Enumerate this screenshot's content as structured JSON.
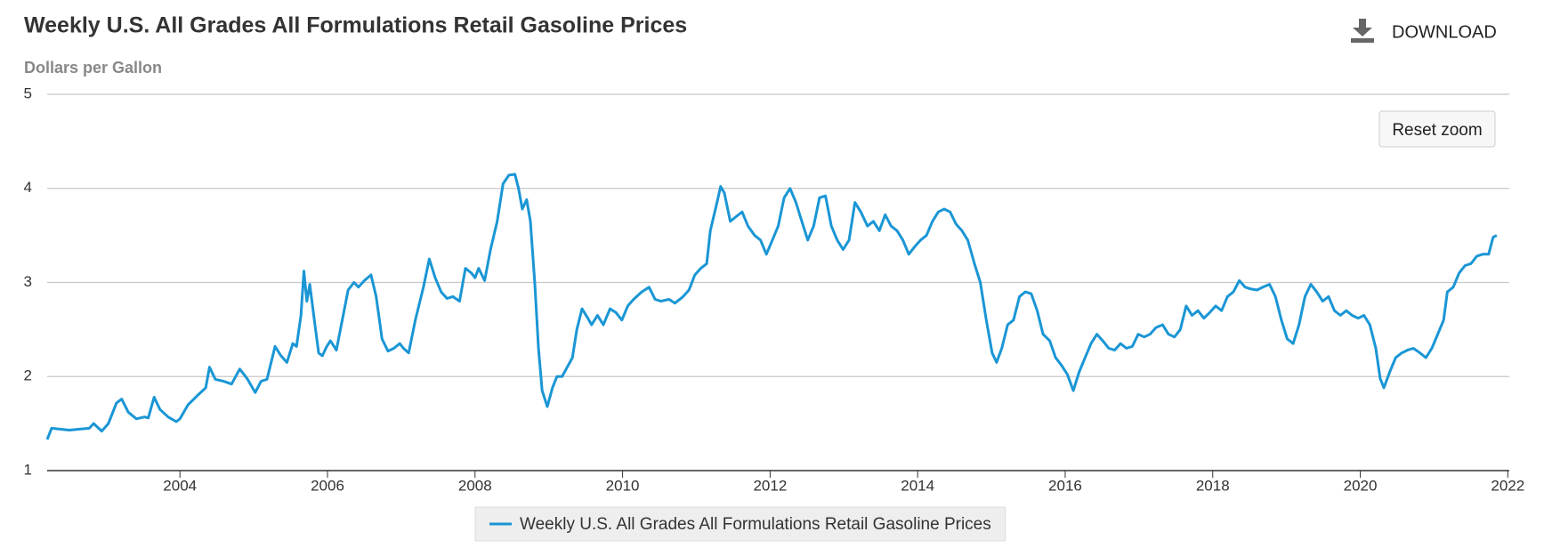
{
  "chart_data": {
    "type": "line",
    "title": "Weekly U.S. All Grades All Formulations Retail Gasoline Prices",
    "y_label": "Dollars per Gallon",
    "x": [
      2002.2,
      2002.26,
      2002.5,
      2002.77,
      2002.83,
      2002.94,
      2003.03,
      2003.14,
      2003.21,
      2003.3,
      2003.41,
      2003.52,
      2003.57,
      2003.65,
      2003.73,
      2003.84,
      2003.95,
      2004.0,
      2004.11,
      2004.24,
      2004.35,
      2004.4,
      2004.48,
      2004.59,
      2004.7,
      2004.81,
      2004.91,
      2005.02,
      2005.1,
      2005.18,
      2005.29,
      2005.37,
      2005.45,
      2005.53,
      2005.58,
      2005.64,
      2005.68,
      2005.72,
      2005.76,
      2005.83,
      2005.88,
      2005.93,
      2005.99,
      2006.04,
      2006.12,
      2006.2,
      2006.28,
      2006.36,
      2006.42,
      2006.5,
      2006.59,
      2006.66,
      2006.74,
      2006.82,
      2006.9,
      2006.98,
      2007.03,
      2007.1,
      2007.19,
      2007.3,
      2007.38,
      2007.46,
      2007.54,
      2007.62,
      2007.7,
      2007.79,
      2007.87,
      2007.95,
      2008.0,
      2008.05,
      2008.13,
      2008.21,
      2008.3,
      2008.38,
      2008.46,
      2008.54,
      2008.59,
      2008.64,
      2008.7,
      2008.75,
      2008.81,
      2008.86,
      2008.91,
      2008.98,
      2009.05,
      2009.11,
      2009.18,
      2009.25,
      2009.32,
      2009.38,
      2009.45,
      2009.53,
      2009.58,
      2009.66,
      2009.74,
      2009.83,
      2009.91,
      2009.99,
      2010.07,
      2010.15,
      2010.26,
      2010.36,
      2010.44,
      2010.52,
      2010.63,
      2010.71,
      2010.82,
      2010.9,
      2010.98,
      2011.06,
      2011.14,
      2011.19,
      2011.28,
      2011.33,
      2011.38,
      2011.46,
      2011.54,
      2011.62,
      2011.7,
      2011.79,
      2011.87,
      2011.95,
      2012.03,
      2012.11,
      2012.19,
      2012.27,
      2012.35,
      2012.43,
      2012.51,
      2012.59,
      2012.67,
      2012.75,
      2012.83,
      2012.91,
      2012.99,
      2013.07,
      2013.15,
      2013.23,
      2013.32,
      2013.4,
      2013.48,
      2013.56,
      2013.64,
      2013.72,
      2013.8,
      2013.88,
      2013.96,
      2014.04,
      2014.12,
      2014.2,
      2014.28,
      2014.36,
      2014.44,
      2014.52,
      2014.6,
      2014.68,
      2014.77,
      2014.85,
      2014.93,
      2015.01,
      2015.07,
      2015.14,
      2015.22,
      2015.3,
      2015.38,
      2015.46,
      2015.54,
      2015.62,
      2015.7,
      2015.79,
      2015.87,
      2015.95,
      2016.03,
      2016.11,
      2016.19,
      2016.27,
      2016.35,
      2016.43,
      2016.51,
      2016.59,
      2016.67,
      2016.75,
      2016.83,
      2016.91,
      2016.99,
      2017.07,
      2017.15,
      2017.23,
      2017.32,
      2017.4,
      2017.48,
      2017.56,
      2017.64,
      2017.72,
      2017.8,
      2017.88,
      2017.96,
      2018.04,
      2018.12,
      2018.2,
      2018.28,
      2018.36,
      2018.44,
      2018.52,
      2018.6,
      2018.68,
      2018.77,
      2018.85,
      2018.93,
      2019.01,
      2019.09,
      2019.17,
      2019.25,
      2019.33,
      2019.41,
      2019.49,
      2019.57,
      2019.65,
      2019.73,
      2019.81,
      2019.89,
      2019.97,
      2020.05,
      2020.13,
      2020.21,
      2020.27,
      2020.32,
      2020.4,
      2020.48,
      2020.56,
      2020.64,
      2020.72,
      2020.81,
      2020.89,
      2020.97,
      2021.05,
      2021.13,
      2021.18,
      2021.26,
      2021.34,
      2021.42,
      2021.5,
      2021.58,
      2021.66,
      2021.74,
      2021.8,
      2021.85
    ],
    "series": [
      {
        "name": "Weekly U.S. All Grades All Formulations Retail Gasoline Prices",
        "color": "#1a96d5",
        "values": [
          1.33,
          1.45,
          1.43,
          1.45,
          1.5,
          1.42,
          1.5,
          1.72,
          1.76,
          1.62,
          1.55,
          1.57,
          1.56,
          1.78,
          1.65,
          1.57,
          1.52,
          1.55,
          1.7,
          1.8,
          1.88,
          2.1,
          1.97,
          1.95,
          1.92,
          2.08,
          1.98,
          1.83,
          1.95,
          1.97,
          2.32,
          2.22,
          2.15,
          2.35,
          2.32,
          2.65,
          3.12,
          2.8,
          2.98,
          2.55,
          2.25,
          2.22,
          2.32,
          2.38,
          2.28,
          2.6,
          2.92,
          3.0,
          2.95,
          3.02,
          3.08,
          2.85,
          2.4,
          2.27,
          2.3,
          2.35,
          2.3,
          2.25,
          2.6,
          2.95,
          3.25,
          3.05,
          2.9,
          2.83,
          2.85,
          2.8,
          3.15,
          3.1,
          3.05,
          3.15,
          3.02,
          3.35,
          3.65,
          4.05,
          4.14,
          4.15,
          4.0,
          3.78,
          3.88,
          3.65,
          3.0,
          2.3,
          1.85,
          1.68,
          1.88,
          2.0,
          2.0,
          2.1,
          2.2,
          2.5,
          2.72,
          2.62,
          2.55,
          2.65,
          2.55,
          2.72,
          2.68,
          2.6,
          2.75,
          2.82,
          2.9,
          2.95,
          2.82,
          2.8,
          2.82,
          2.78,
          2.85,
          2.92,
          3.08,
          3.15,
          3.2,
          3.55,
          3.85,
          4.02,
          3.95,
          3.65,
          3.7,
          3.75,
          3.6,
          3.5,
          3.45,
          3.3,
          3.45,
          3.6,
          3.9,
          4.0,
          3.85,
          3.65,
          3.45,
          3.6,
          3.9,
          3.92,
          3.6,
          3.45,
          3.35,
          3.45,
          3.85,
          3.75,
          3.6,
          3.65,
          3.55,
          3.72,
          3.6,
          3.55,
          3.45,
          3.3,
          3.38,
          3.45,
          3.5,
          3.65,
          3.75,
          3.78,
          3.75,
          3.62,
          3.55,
          3.45,
          3.2,
          3.0,
          2.6,
          2.25,
          2.15,
          2.3,
          2.55,
          2.6,
          2.85,
          2.9,
          2.88,
          2.7,
          2.45,
          2.38,
          2.2,
          2.12,
          2.02,
          1.85,
          2.05,
          2.2,
          2.35,
          2.45,
          2.38,
          2.3,
          2.28,
          2.35,
          2.3,
          2.32,
          2.45,
          2.42,
          2.45,
          2.52,
          2.55,
          2.45,
          2.42,
          2.5,
          2.75,
          2.65,
          2.7,
          2.62,
          2.68,
          2.75,
          2.7,
          2.85,
          2.9,
          3.02,
          2.95,
          2.93,
          2.92,
          2.95,
          2.98,
          2.85,
          2.6,
          2.4,
          2.35,
          2.55,
          2.85,
          2.98,
          2.9,
          2.8,
          2.85,
          2.7,
          2.65,
          2.7,
          2.65,
          2.62,
          2.65,
          2.55,
          2.3,
          1.98,
          1.88,
          2.05,
          2.2,
          2.25,
          2.28,
          2.3,
          2.25,
          2.2,
          2.3,
          2.45,
          2.6,
          2.9,
          2.95,
          3.1,
          3.18,
          3.2,
          3.28,
          3.3,
          3.3,
          3.48,
          3.5
        ]
      }
    ],
    "xlim": [
      2002.2,
      2022.02
    ],
    "xticks": [
      2004,
      2006,
      2008,
      2010,
      2012,
      2014,
      2016,
      2018,
      2020,
      2022
    ],
    "ylim": [
      1,
      5
    ],
    "yticks": [
      1,
      2,
      3,
      4,
      5
    ],
    "grid": true,
    "legend": "bottom"
  },
  "download": "DOWNLOAD",
  "reset_zoom": "Reset zoom"
}
